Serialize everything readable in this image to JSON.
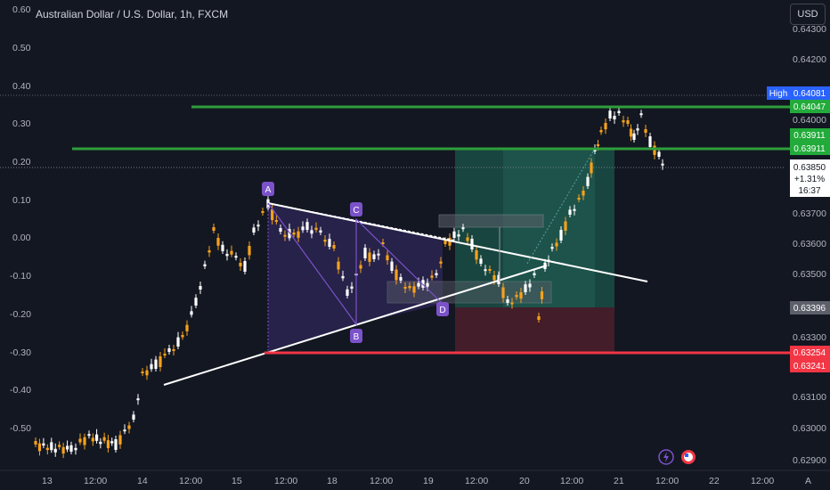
{
  "header": {
    "title": "Australian Dollar / U.S. Dollar, 1h, FXCM",
    "currency_button": "USD"
  },
  "left_axis": {
    "labels": [
      "0.60",
      "0.50",
      "0.40",
      "0.30",
      "0.20",
      "0.10",
      "0.00",
      "-0.10",
      "-0.20",
      "-0.30",
      "-0.40",
      "-0.50"
    ]
  },
  "right_axis": {
    "labels": [
      "0.64300",
      "0.64200",
      "0.64000",
      "0.63700",
      "0.63600",
      "0.63500",
      "0.63300",
      "0.63100",
      "0.63000",
      "0.62900"
    ]
  },
  "price_tags": {
    "high_label": "High",
    "high_value": "0.64081",
    "green_top": "0.64047",
    "green_a": "0.63911",
    "green_b": "0.63911",
    "current_price": "0.63850",
    "current_change": "+1.31%",
    "current_time": "16:37",
    "entry": "0.63396",
    "red_a": "0.63254",
    "red_b": "0.63241"
  },
  "time_axis": {
    "labels": [
      "13",
      "12:00",
      "14",
      "12:00",
      "15",
      "12:00",
      "18",
      "12:00",
      "19",
      "12:00",
      "20",
      "12:00",
      "21",
      "12:00",
      "22",
      "12:00"
    ],
    "scale_button": "A"
  },
  "pattern_labels": {
    "a": "A",
    "b": "B",
    "c": "C",
    "d": "D"
  },
  "colors": {
    "background": "#131722",
    "up": "#ffffff",
    "down": "#f7a21b",
    "green_line": "#2e9e3a",
    "red_line": "#f23645",
    "pattern_fill": "#312a5e"
  },
  "chart_data": {
    "type": "candlestick",
    "symbol": "Australian Dollar / U.S. Dollar",
    "timeframe": "1h",
    "y_range": [
      0.6288,
      0.6432
    ],
    "horizontal_levels": [
      0.64047,
      0.63911,
      0.63254
    ],
    "high": 0.64081,
    "last": 0.6385,
    "change_percent": "+1.31%",
    "entry": 0.63396
  }
}
